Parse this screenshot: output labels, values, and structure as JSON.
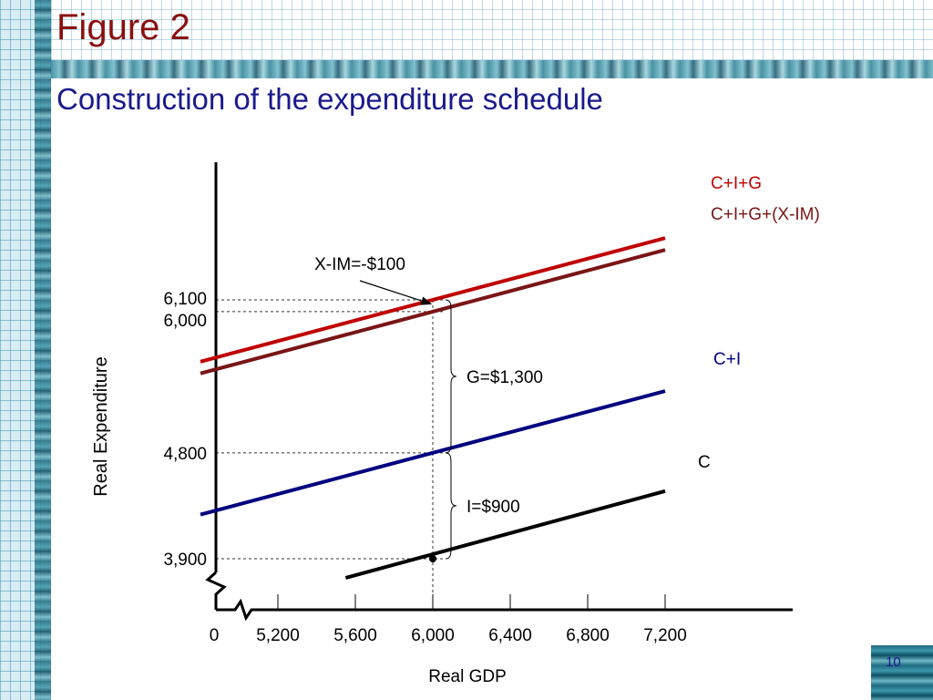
{
  "slide": {
    "title": "Figure 2",
    "subtitle": "Construction of the expenditure schedule",
    "page_number": "10"
  },
  "colors": {
    "title": "#8b1010",
    "subtitle": "#1a1a8c",
    "cig": "#c00000",
    "cigx": "#7a1515",
    "ci": "#000080",
    "c": "#000000"
  },
  "chart_data": {
    "type": "line",
    "xlabel": "Real GDP",
    "ylabel": "Real Expenditure",
    "x_tick_labels": [
      "0",
      "5,200",
      "5,600",
      "6,000",
      "6,400",
      "6,800",
      "7,200"
    ],
    "y_tick_labels": [
      "3,900",
      "4,800",
      "6,000",
      "6,100"
    ],
    "axis_breaks": true,
    "reference_x": 6000,
    "series": [
      {
        "name": "C+I+G",
        "color": "#c00000",
        "x": [
          4800,
          7200
        ],
        "y": [
          5575,
          6625
        ]
      },
      {
        "name": "C+I+G+(X-IM)",
        "color": "#7a1515",
        "x": [
          4800,
          7200
        ],
        "y": [
          5475,
          6525
        ]
      },
      {
        "name": "C+I",
        "color": "#000080",
        "x": [
          4800,
          7200
        ],
        "y": [
          4275,
          5325
        ]
      },
      {
        "name": "C",
        "color": "#000000",
        "x": [
          5550,
          7200
        ],
        "y": [
          3737.5,
          4475
        ]
      }
    ],
    "annotations": [
      {
        "label": "X-IM=-$100",
        "x": 6000,
        "y": 6050,
        "arrow": true
      },
      {
        "label": "G=$1,300",
        "x": 6000,
        "y_from": 4800,
        "y_to": 6100,
        "brace": true
      },
      {
        "label": "I=$900",
        "x": 6000,
        "y_from": 3900,
        "y_to": 4800,
        "brace": true
      }
    ],
    "points": [
      {
        "x": 6000,
        "y": 3900
      }
    ]
  }
}
